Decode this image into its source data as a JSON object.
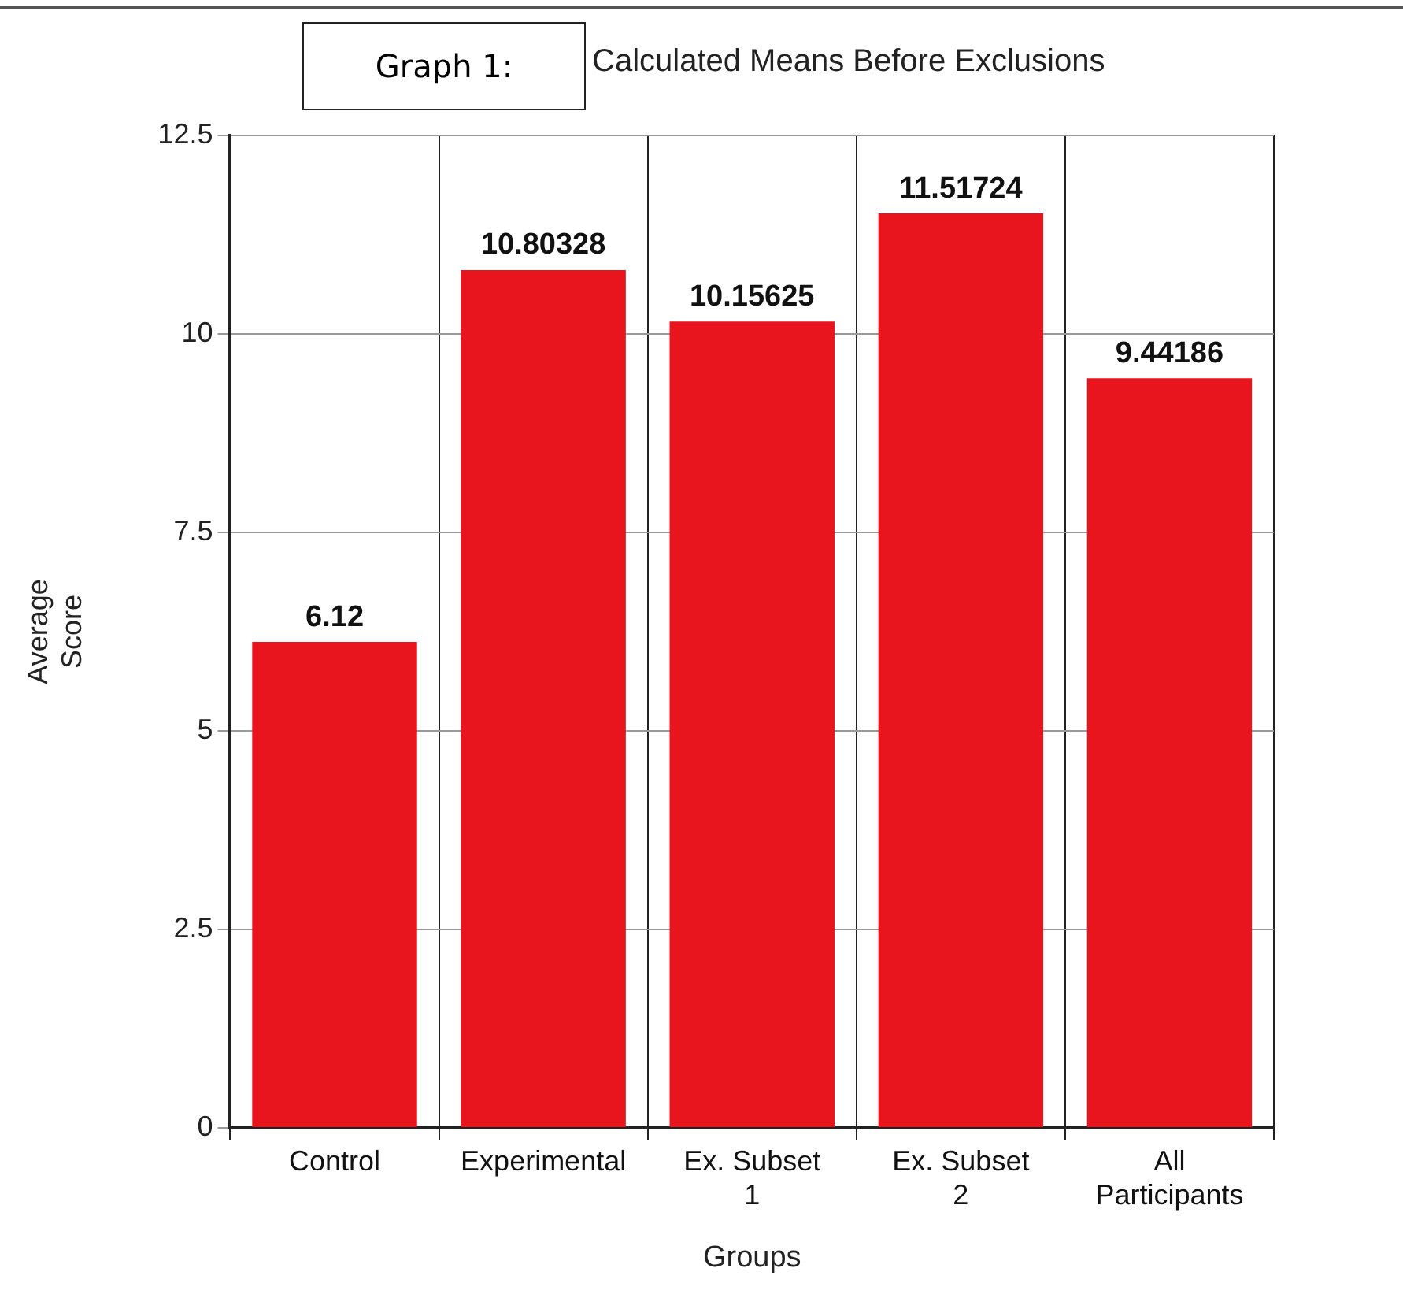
{
  "chart_data": {
    "type": "bar",
    "title": "Calculated Means Before Exclusions",
    "annotations": [
      "Graph 1:"
    ],
    "xlabel": "Groups",
    "ylabel": "Average Score",
    "categories": [
      "Control",
      "Experimental",
      "Ex. Subset 1",
      "Ex. Subset 2",
      "All Participants"
    ],
    "values": [
      6.12,
      10.80328,
      10.15625,
      11.51724,
      9.44186
    ],
    "color": "#e8141e",
    "ylim": [
      0,
      12.5
    ],
    "yticks": [
      0,
      2.5,
      5,
      7.5,
      10,
      12.5
    ],
    "grid": true,
    "data_labels": true,
    "legend": false
  }
}
